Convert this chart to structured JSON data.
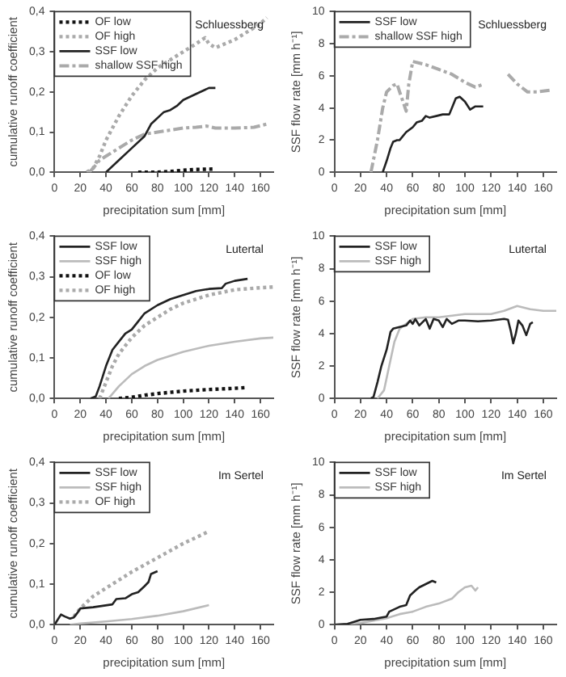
{
  "chart_data": [
    {
      "type": "line",
      "xlabel": "precipitation sum [mm]",
      "ylabel": "cumulative runoff coefficient",
      "annotations": [
        "Schluessberg"
      ],
      "xlim": [
        0,
        170
      ],
      "xticks": [
        0,
        20,
        40,
        60,
        80,
        100,
        120,
        140,
        160
      ],
      "ylim": [
        0,
        0.4
      ],
      "yticks": [
        {
          "value": 0,
          "label": "0,0"
        },
        {
          "value": 0.1,
          "label": "0,1"
        },
        {
          "value": 0.2,
          "label": "0,2"
        },
        {
          "value": 0.3,
          "label": "0,3"
        },
        {
          "value": 0.4,
          "label": "0,4"
        }
      ],
      "grid": false,
      "legend": "top left",
      "marker": "none",
      "series": [
        {
          "name": "OF low",
          "color": "#111111",
          "line_style": "dotted",
          "x": [
            65,
            80,
            90,
            100,
            110,
            125
          ],
          "values": [
            0,
            0,
            0.002,
            0.005,
            0.007,
            0.008
          ]
        },
        {
          "name": "OF high",
          "color": "#aaaaaa",
          "line_style": "dotted",
          "x": [
            25,
            30,
            35,
            40,
            50,
            60,
            70,
            80,
            90,
            100,
            110,
            117,
            120,
            125,
            140,
            150,
            160,
            165
          ],
          "values": [
            0,
            0.01,
            0.04,
            0.08,
            0.14,
            0.19,
            0.23,
            0.26,
            0.28,
            0.3,
            0.32,
            0.335,
            0.32,
            0.31,
            0.33,
            0.35,
            0.37,
            0.385
          ]
        },
        {
          "name": "SSF low",
          "color": "#222222",
          "line_style": "solid",
          "x": [
            40,
            50,
            60,
            70,
            75,
            85,
            90,
            95,
            100,
            110,
            120,
            125
          ],
          "values": [
            0,
            0.03,
            0.06,
            0.09,
            0.12,
            0.15,
            0.155,
            0.165,
            0.18,
            0.195,
            0.21,
            0.21
          ]
        },
        {
          "name": "shallow SSF high",
          "color": "#aaaaaa",
          "line_style": "dashed",
          "x": [
            27,
            30,
            35,
            40,
            50,
            60,
            70,
            80,
            90,
            100,
            110,
            118,
            125,
            140,
            155,
            165
          ],
          "values": [
            0,
            0.01,
            0.03,
            0.04,
            0.06,
            0.08,
            0.095,
            0.1,
            0.105,
            0.11,
            0.112,
            0.115,
            0.11,
            0.11,
            0.112,
            0.12
          ]
        }
      ]
    },
    {
      "type": "line",
      "xlabel": "precipitation sum [mm]",
      "ylabel": "SSF flow rate [mm h⁻¹]",
      "annotations": [
        "Schluessberg"
      ],
      "xlim": [
        0,
        170
      ],
      "xticks": [
        0,
        20,
        40,
        60,
        80,
        100,
        120,
        140,
        160
      ],
      "ylim": [
        0,
        10
      ],
      "yticks": [
        0,
        2,
        4,
        6,
        8,
        10
      ],
      "grid": false,
      "legend": "top left",
      "marker": "none",
      "series": [
        {
          "name": "SSF low",
          "color": "#222222",
          "line_style": "solid",
          "x": [
            37,
            40,
            43,
            45,
            48,
            50,
            55,
            60,
            63,
            67,
            70,
            73,
            78,
            83,
            88,
            90,
            93,
            96,
            100,
            104,
            108,
            114
          ],
          "values": [
            0,
            0.7,
            1.5,
            1.9,
            2.0,
            2.0,
            2.5,
            2.8,
            3.1,
            3.2,
            3.5,
            3.4,
            3.5,
            3.6,
            3.6,
            4.0,
            4.6,
            4.7,
            4.4,
            3.9,
            4.1,
            4.1
          ]
        },
        {
          "name": "shallow SSF high",
          "color": "#aaaaaa",
          "line_style": "dashed",
          "x": [
            28,
            33,
            37,
            40,
            45,
            48,
            50,
            53,
            55,
            57,
            60,
            70,
            80,
            90,
            100,
            108,
            115,
            124,
            133,
            140,
            148,
            155,
            165
          ],
          "values": [
            0,
            2,
            4,
            5,
            5.4,
            5.5,
            5.0,
            4.3,
            3.8,
            5.5,
            6.9,
            6.7,
            6.4,
            6.1,
            5.6,
            5.3,
            5.5,
            null,
            6.1,
            5.5,
            5.0,
            5.0,
            5.1
          ]
        }
      ]
    },
    {
      "type": "line",
      "xlabel": "precipitation sum [mm]",
      "ylabel": "cumulative runoff coefficient",
      "annotations": [
        "Lutertal"
      ],
      "xlim": [
        0,
        170
      ],
      "xticks": [
        0,
        20,
        40,
        60,
        80,
        100,
        120,
        140,
        160
      ],
      "ylim": [
        0,
        0.4
      ],
      "yticks": [
        {
          "value": 0,
          "label": "0,0"
        },
        {
          "value": 0.1,
          "label": "0,1"
        },
        {
          "value": 0.2,
          "label": "0,2"
        },
        {
          "value": 0.3,
          "label": "0,3"
        },
        {
          "value": 0.4,
          "label": "0,4"
        }
      ],
      "grid": false,
      "legend": "top left",
      "marker": "none",
      "series": [
        {
          "name": "SSF low",
          "color": "#222222",
          "line_style": "solid",
          "x": [
            28,
            32,
            35,
            40,
            45,
            50,
            55,
            60,
            65,
            70,
            80,
            90,
            100,
            110,
            120,
            130,
            133,
            140,
            150
          ],
          "values": [
            0,
            0.005,
            0.03,
            0.08,
            0.12,
            0.14,
            0.16,
            0.17,
            0.19,
            0.21,
            0.23,
            0.245,
            0.255,
            0.265,
            0.27,
            0.272,
            0.283,
            0.29,
            0.295
          ]
        },
        {
          "name": "SSF high",
          "color": "#bbbbbb",
          "line_style": "solid",
          "x": [
            42,
            50,
            60,
            70,
            80,
            90,
            100,
            120,
            140,
            160,
            170
          ],
          "values": [
            0,
            0.03,
            0.06,
            0.08,
            0.095,
            0.105,
            0.115,
            0.13,
            0.14,
            0.148,
            0.15
          ]
        },
        {
          "name": "OF low",
          "color": "#111111",
          "line_style": "dotted",
          "x": [
            50,
            60,
            70,
            80,
            100,
            120,
            140,
            150
          ],
          "values": [
            0,
            0.003,
            0.008,
            0.012,
            0.018,
            0.022,
            0.025,
            0.027
          ]
        },
        {
          "name": "OF high",
          "color": "#aaaaaa",
          "line_style": "dotted",
          "x": [
            35,
            40,
            45,
            50,
            60,
            70,
            80,
            90,
            100,
            120,
            140,
            160,
            170
          ],
          "values": [
            0,
            0.04,
            0.08,
            0.11,
            0.15,
            0.18,
            0.2,
            0.22,
            0.235,
            0.255,
            0.268,
            0.273,
            0.275
          ]
        }
      ]
    },
    {
      "type": "line",
      "xlabel": "precipitation sum [mm]",
      "ylabel": "SSF flow rate [mm h⁻¹]",
      "annotations": [
        "Lutertal"
      ],
      "xlim": [
        0,
        170
      ],
      "xticks": [
        0,
        20,
        40,
        60,
        80,
        100,
        120,
        140,
        160
      ],
      "ylim": [
        0,
        10
      ],
      "yticks": [
        0,
        2,
        4,
        6,
        8,
        10
      ],
      "grid": false,
      "legend": "top left",
      "marker": "none",
      "series": [
        {
          "name": "SSF low",
          "color": "#222222",
          "line_style": "solid",
          "x": [
            28,
            30,
            33,
            36,
            40,
            43,
            45,
            50,
            55,
            58,
            60,
            62,
            65,
            70,
            73,
            76,
            80,
            83,
            86,
            90,
            95,
            100,
            110,
            120,
            130,
            133,
            135,
            137,
            139,
            141,
            144,
            147,
            150,
            152
          ],
          "values": [
            0,
            0.1,
            1,
            2,
            3,
            4.1,
            4.3,
            4.4,
            4.5,
            4.8,
            4.6,
            4.9,
            4.5,
            4.9,
            4.3,
            4.9,
            4.8,
            4.4,
            4.9,
            4.6,
            4.8,
            4.8,
            4.75,
            4.8,
            4.9,
            4.85,
            4.2,
            3.4,
            4.0,
            4.8,
            4.5,
            3.9,
            4.6,
            4.7
          ]
        },
        {
          "name": "SSF high",
          "color": "#bbbbbb",
          "line_style": "solid",
          "x": [
            33,
            38,
            42,
            46,
            50,
            55,
            60,
            70,
            80,
            90,
            100,
            110,
            120,
            130,
            140,
            150,
            160,
            170
          ],
          "values": [
            0,
            0.5,
            2,
            3.5,
            4.3,
            4.6,
            4.9,
            5.0,
            5.0,
            5.1,
            5.2,
            5.2,
            5.2,
            5.4,
            5.7,
            5.5,
            5.4,
            5.4
          ]
        }
      ]
    },
    {
      "type": "line",
      "xlabel": "precipitation sum [mm]",
      "ylabel": "cumulative runoff coefficient",
      "annotations": [
        "Im Sertel"
      ],
      "xlim": [
        0,
        170
      ],
      "xticks": [
        0,
        20,
        40,
        60,
        80,
        100,
        120,
        140,
        160
      ],
      "ylim": [
        0,
        0.4
      ],
      "yticks": [
        {
          "value": 0,
          "label": "0,0"
        },
        {
          "value": 0.1,
          "label": "0,1"
        },
        {
          "value": 0.2,
          "label": "0,2"
        },
        {
          "value": 0.3,
          "label": "0,3"
        },
        {
          "value": 0.4,
          "label": "0,4"
        }
      ],
      "grid": false,
      "legend": "top left",
      "marker": "none",
      "series": [
        {
          "name": "SSF low",
          "color": "#222222",
          "line_style": "solid",
          "x": [
            0,
            5,
            8,
            12,
            15,
            18,
            20,
            30,
            45,
            48,
            55,
            60,
            65,
            70,
            73,
            75,
            80
          ],
          "values": [
            0,
            0.025,
            0.02,
            0.015,
            0.018,
            0.03,
            0.04,
            0.043,
            0.05,
            0.063,
            0.065,
            0.075,
            0.08,
            0.095,
            0.105,
            0.125,
            0.132
          ]
        },
        {
          "name": "SSF high",
          "color": "#bbbbbb",
          "line_style": "solid",
          "x": [
            12,
            20,
            40,
            60,
            80,
            100,
            120
          ],
          "values": [
            0,
            0.003,
            0.008,
            0.014,
            0.022,
            0.033,
            0.048
          ]
        },
        {
          "name": "OF high",
          "color": "#aaaaaa",
          "line_style": "dotted",
          "x": [
            15,
            20,
            30,
            40,
            60,
            80,
            100,
            120
          ],
          "values": [
            0.02,
            0.04,
            0.07,
            0.09,
            0.13,
            0.165,
            0.2,
            0.23
          ]
        }
      ]
    },
    {
      "type": "line",
      "xlabel": "precipitation sum [mm]",
      "ylabel": "SSF flow rate [mm h⁻¹]",
      "annotations": [
        "Im Sertel"
      ],
      "xlim": [
        0,
        170
      ],
      "xticks": [
        0,
        20,
        40,
        60,
        80,
        100,
        120,
        140,
        160
      ],
      "ylim": [
        0,
        10
      ],
      "yticks": [
        0,
        2,
        4,
        6,
        8,
        10
      ],
      "grid": false,
      "legend": "top left",
      "marker": "none",
      "series": [
        {
          "name": "SSF low",
          "color": "#222222",
          "line_style": "solid",
          "x": [
            0,
            10,
            20,
            30,
            40,
            42,
            50,
            55,
            58,
            62,
            65,
            70,
            75,
            78
          ],
          "values": [
            0,
            0.05,
            0.3,
            0.35,
            0.5,
            0.8,
            1.1,
            1.2,
            1.8,
            2.1,
            2.3,
            2.5,
            2.7,
            2.6
          ]
        },
        {
          "name": "SSF high",
          "color": "#bbbbbb",
          "line_style": "solid",
          "x": [
            0,
            20,
            40,
            50,
            60,
            70,
            80,
            90,
            95,
            100,
            105,
            108,
            110
          ],
          "values": [
            0,
            0.1,
            0.4,
            0.65,
            0.8,
            1.1,
            1.3,
            1.6,
            2.0,
            2.3,
            2.4,
            2.1,
            2.3
          ]
        }
      ]
    }
  ]
}
